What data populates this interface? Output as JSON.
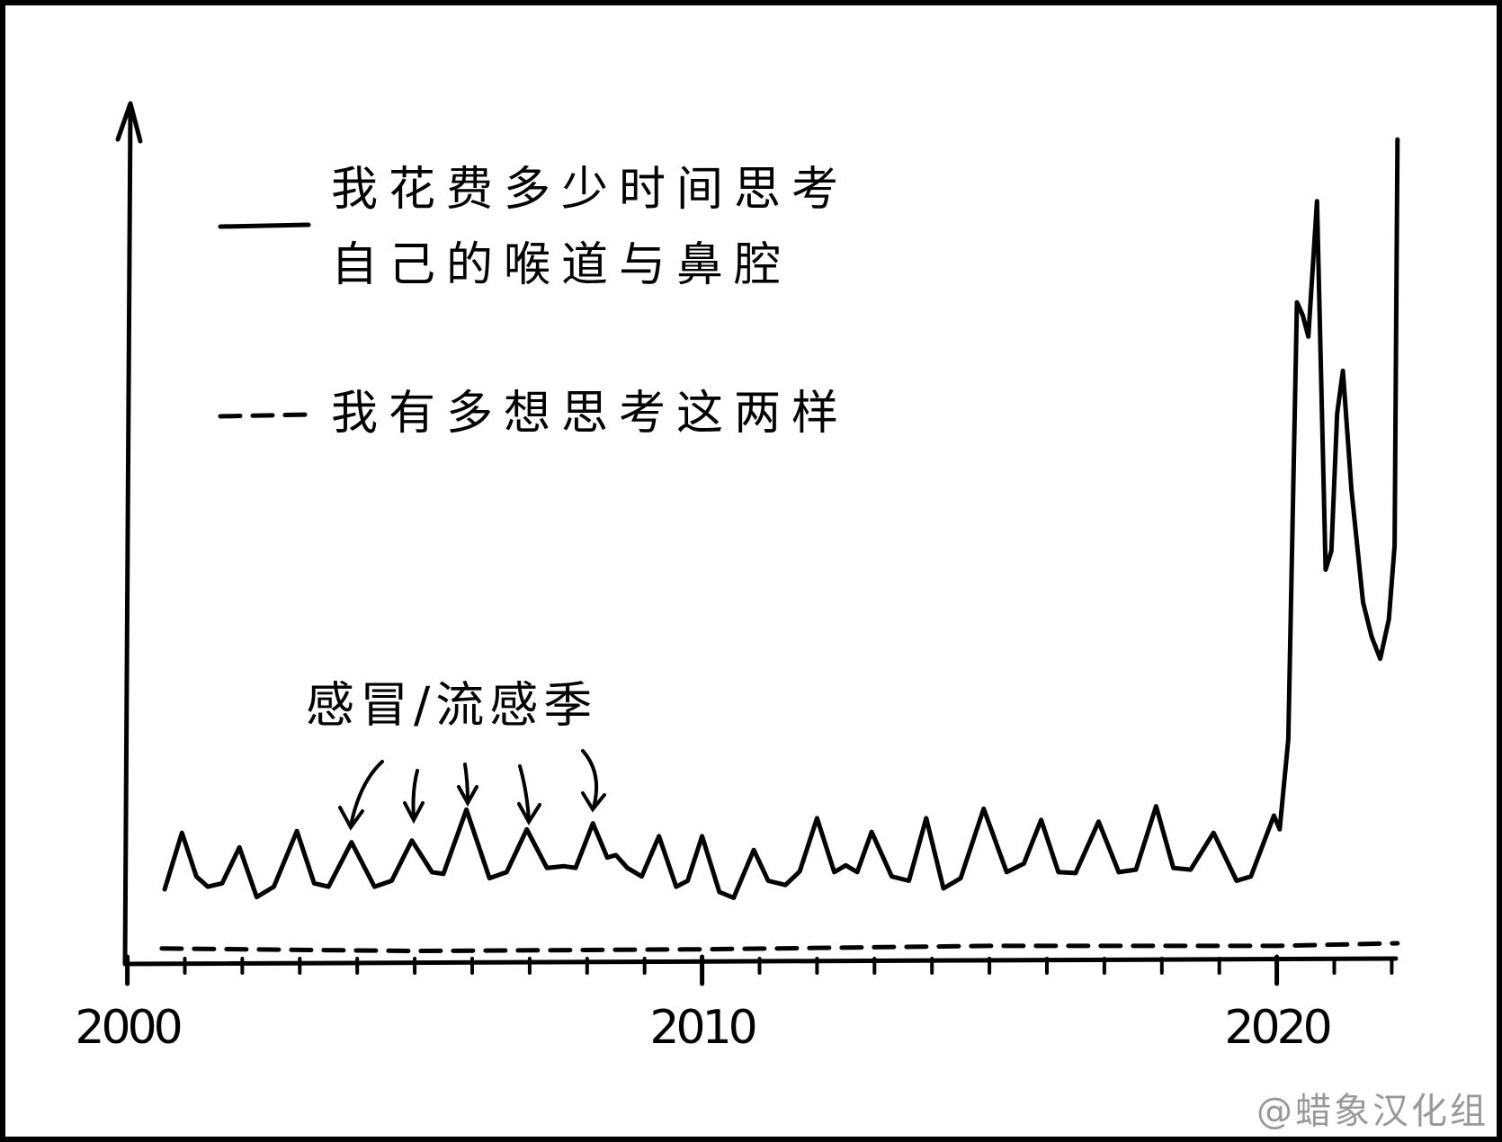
{
  "chart_data": {
    "type": "line",
    "series": [
      {
        "name": [
          "我花费多少时间思考",
          "自己的喉道与鼻腔"
        ],
        "color": "#000000",
        "style": "solid",
        "x": [
          2000.65,
          2000.95,
          2001.2,
          2001.4,
          2001.65,
          2001.95,
          2002.25,
          2002.55,
          2002.95,
          2003.25,
          2003.5,
          2003.9,
          2004.3,
          2004.6,
          2004.95,
          2005.3,
          2005.5,
          2005.9,
          2006.3,
          2006.6,
          2006.95,
          2007.3,
          2007.6,
          2007.8,
          2008.1,
          2008.35,
          2008.5,
          2008.7,
          2008.95,
          2009.25,
          2009.55,
          2009.75,
          2010.0,
          2010.3,
          2010.55,
          2010.9,
          2011.15,
          2011.45,
          2011.7,
          2012.0,
          2012.3,
          2012.5,
          2012.7,
          2012.95,
          2013.3,
          2013.6,
          2013.9,
          2014.2,
          2014.5,
          2014.9,
          2015.3,
          2015.6,
          2015.9,
          2016.2,
          2016.5,
          2016.9,
          2017.25,
          2017.55,
          2017.9,
          2018.2,
          2018.5,
          2018.9,
          2019.3,
          2019.55,
          2019.95,
          2020.05,
          2020.2,
          2020.35,
          2020.45,
          2020.55,
          2020.7,
          2020.85,
          2020.95,
          2021.05,
          2021.15,
          2021.3,
          2021.5,
          2021.65,
          2021.8,
          2021.95,
          2022.05,
          2022.1
        ],
        "values": [
          8.5,
          15.1,
          10,
          8.8,
          9.2,
          13.4,
          7.6,
          8.8,
          15.3,
          9.2,
          8.8,
          14,
          8.8,
          9.5,
          14.2,
          10.5,
          10.3,
          17.8,
          9.8,
          10.5,
          15.5,
          11,
          11.2,
          11,
          16.2,
          12.2,
          12.5,
          11,
          10,
          14.7,
          8.8,
          9.5,
          14.7,
          8.2,
          7.5,
          13.1,
          9.5,
          9.0,
          10.6,
          16.8,
          10.5,
          11.3,
          10.5,
          15.2,
          10,
          9.5,
          16.8,
          8.6,
          9.8,
          17.9,
          10.5,
          11.5,
          16.6,
          10.5,
          10.4,
          16.4,
          10.5,
          10.8,
          18.2,
          11,
          10.8,
          15.1,
          9.5,
          10,
          17.1,
          15.5,
          26,
          77,
          75.5,
          73,
          88.8,
          45.8,
          48,
          64,
          69,
          55,
          42,
          38,
          35.4,
          40,
          48.6,
          96
        ]
      },
      {
        "name": [
          "我有多想思考这两样"
        ],
        "color": "#000000",
        "style": "dashed",
        "x": [
          2000.6,
          2005,
          2010,
          2015,
          2020,
          2022.1
        ],
        "values": [
          1.6,
          1.3,
          1.5,
          1.9,
          1.9,
          2.2
        ]
      }
    ],
    "annotation": "感冒/流感季",
    "credit": "@蜡象汉化组",
    "xlim": [
      2000,
      2022.3
    ],
    "xticks": [
      2000,
      2010,
      2020
    ],
    "xminorticks": [
      2001,
      2002,
      2003,
      2004,
      2005,
      2006,
      2007,
      2008,
      2009,
      2011,
      2012,
      2013,
      2014,
      2015,
      2016,
      2017,
      2018,
      2019,
      2021,
      2022
    ],
    "ylim": [
      0,
      100
    ]
  }
}
